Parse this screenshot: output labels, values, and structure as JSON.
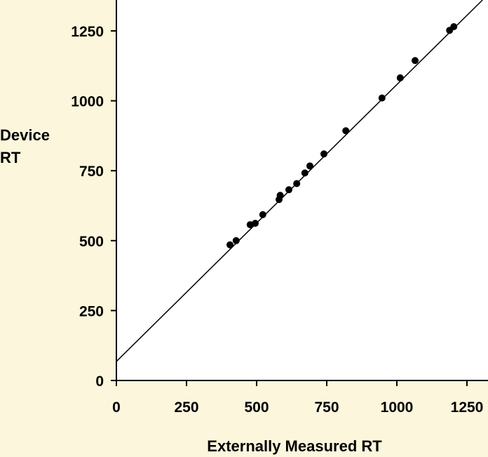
{
  "chart_data": {
    "type": "scatter",
    "title": "",
    "xlabel": "Externally Measured RT",
    "ylabel_lines": [
      "Device",
      "RT"
    ],
    "xlim": [
      0,
      1325
    ],
    "ylim": [
      0,
      1350
    ],
    "xticks": [
      0,
      250,
      500,
      750,
      1000,
      1250
    ],
    "yticks": [
      0,
      250,
      500,
      750,
      1000,
      1250
    ],
    "xtick_labels": [
      "0",
      "250",
      "500",
      "750",
      "1000",
      "1250"
    ],
    "ytick_labels": [
      "0",
      "250",
      "500",
      "750",
      "1000",
      "1250"
    ],
    "grid": false,
    "legend": "none",
    "points": [
      {
        "x": 405,
        "y": 485
      },
      {
        "x": 427,
        "y": 500
      },
      {
        "x": 477,
        "y": 557
      },
      {
        "x": 495,
        "y": 562
      },
      {
        "x": 522,
        "y": 593
      },
      {
        "x": 580,
        "y": 647
      },
      {
        "x": 584,
        "y": 662
      },
      {
        "x": 615,
        "y": 682
      },
      {
        "x": 643,
        "y": 704
      },
      {
        "x": 672,
        "y": 742
      },
      {
        "x": 690,
        "y": 767
      },
      {
        "x": 740,
        "y": 810
      },
      {
        "x": 818,
        "y": 893
      },
      {
        "x": 947,
        "y": 1010
      },
      {
        "x": 1012,
        "y": 1082
      },
      {
        "x": 1065,
        "y": 1144
      },
      {
        "x": 1188,
        "y": 1252
      },
      {
        "x": 1203,
        "y": 1265
      }
    ],
    "fit_line": {
      "intercept": 68,
      "slope": 0.99
    },
    "colors": {
      "background": "#fbf6dc",
      "plot_background": "#ffffff",
      "point": "#000000",
      "line": "#000000"
    }
  }
}
